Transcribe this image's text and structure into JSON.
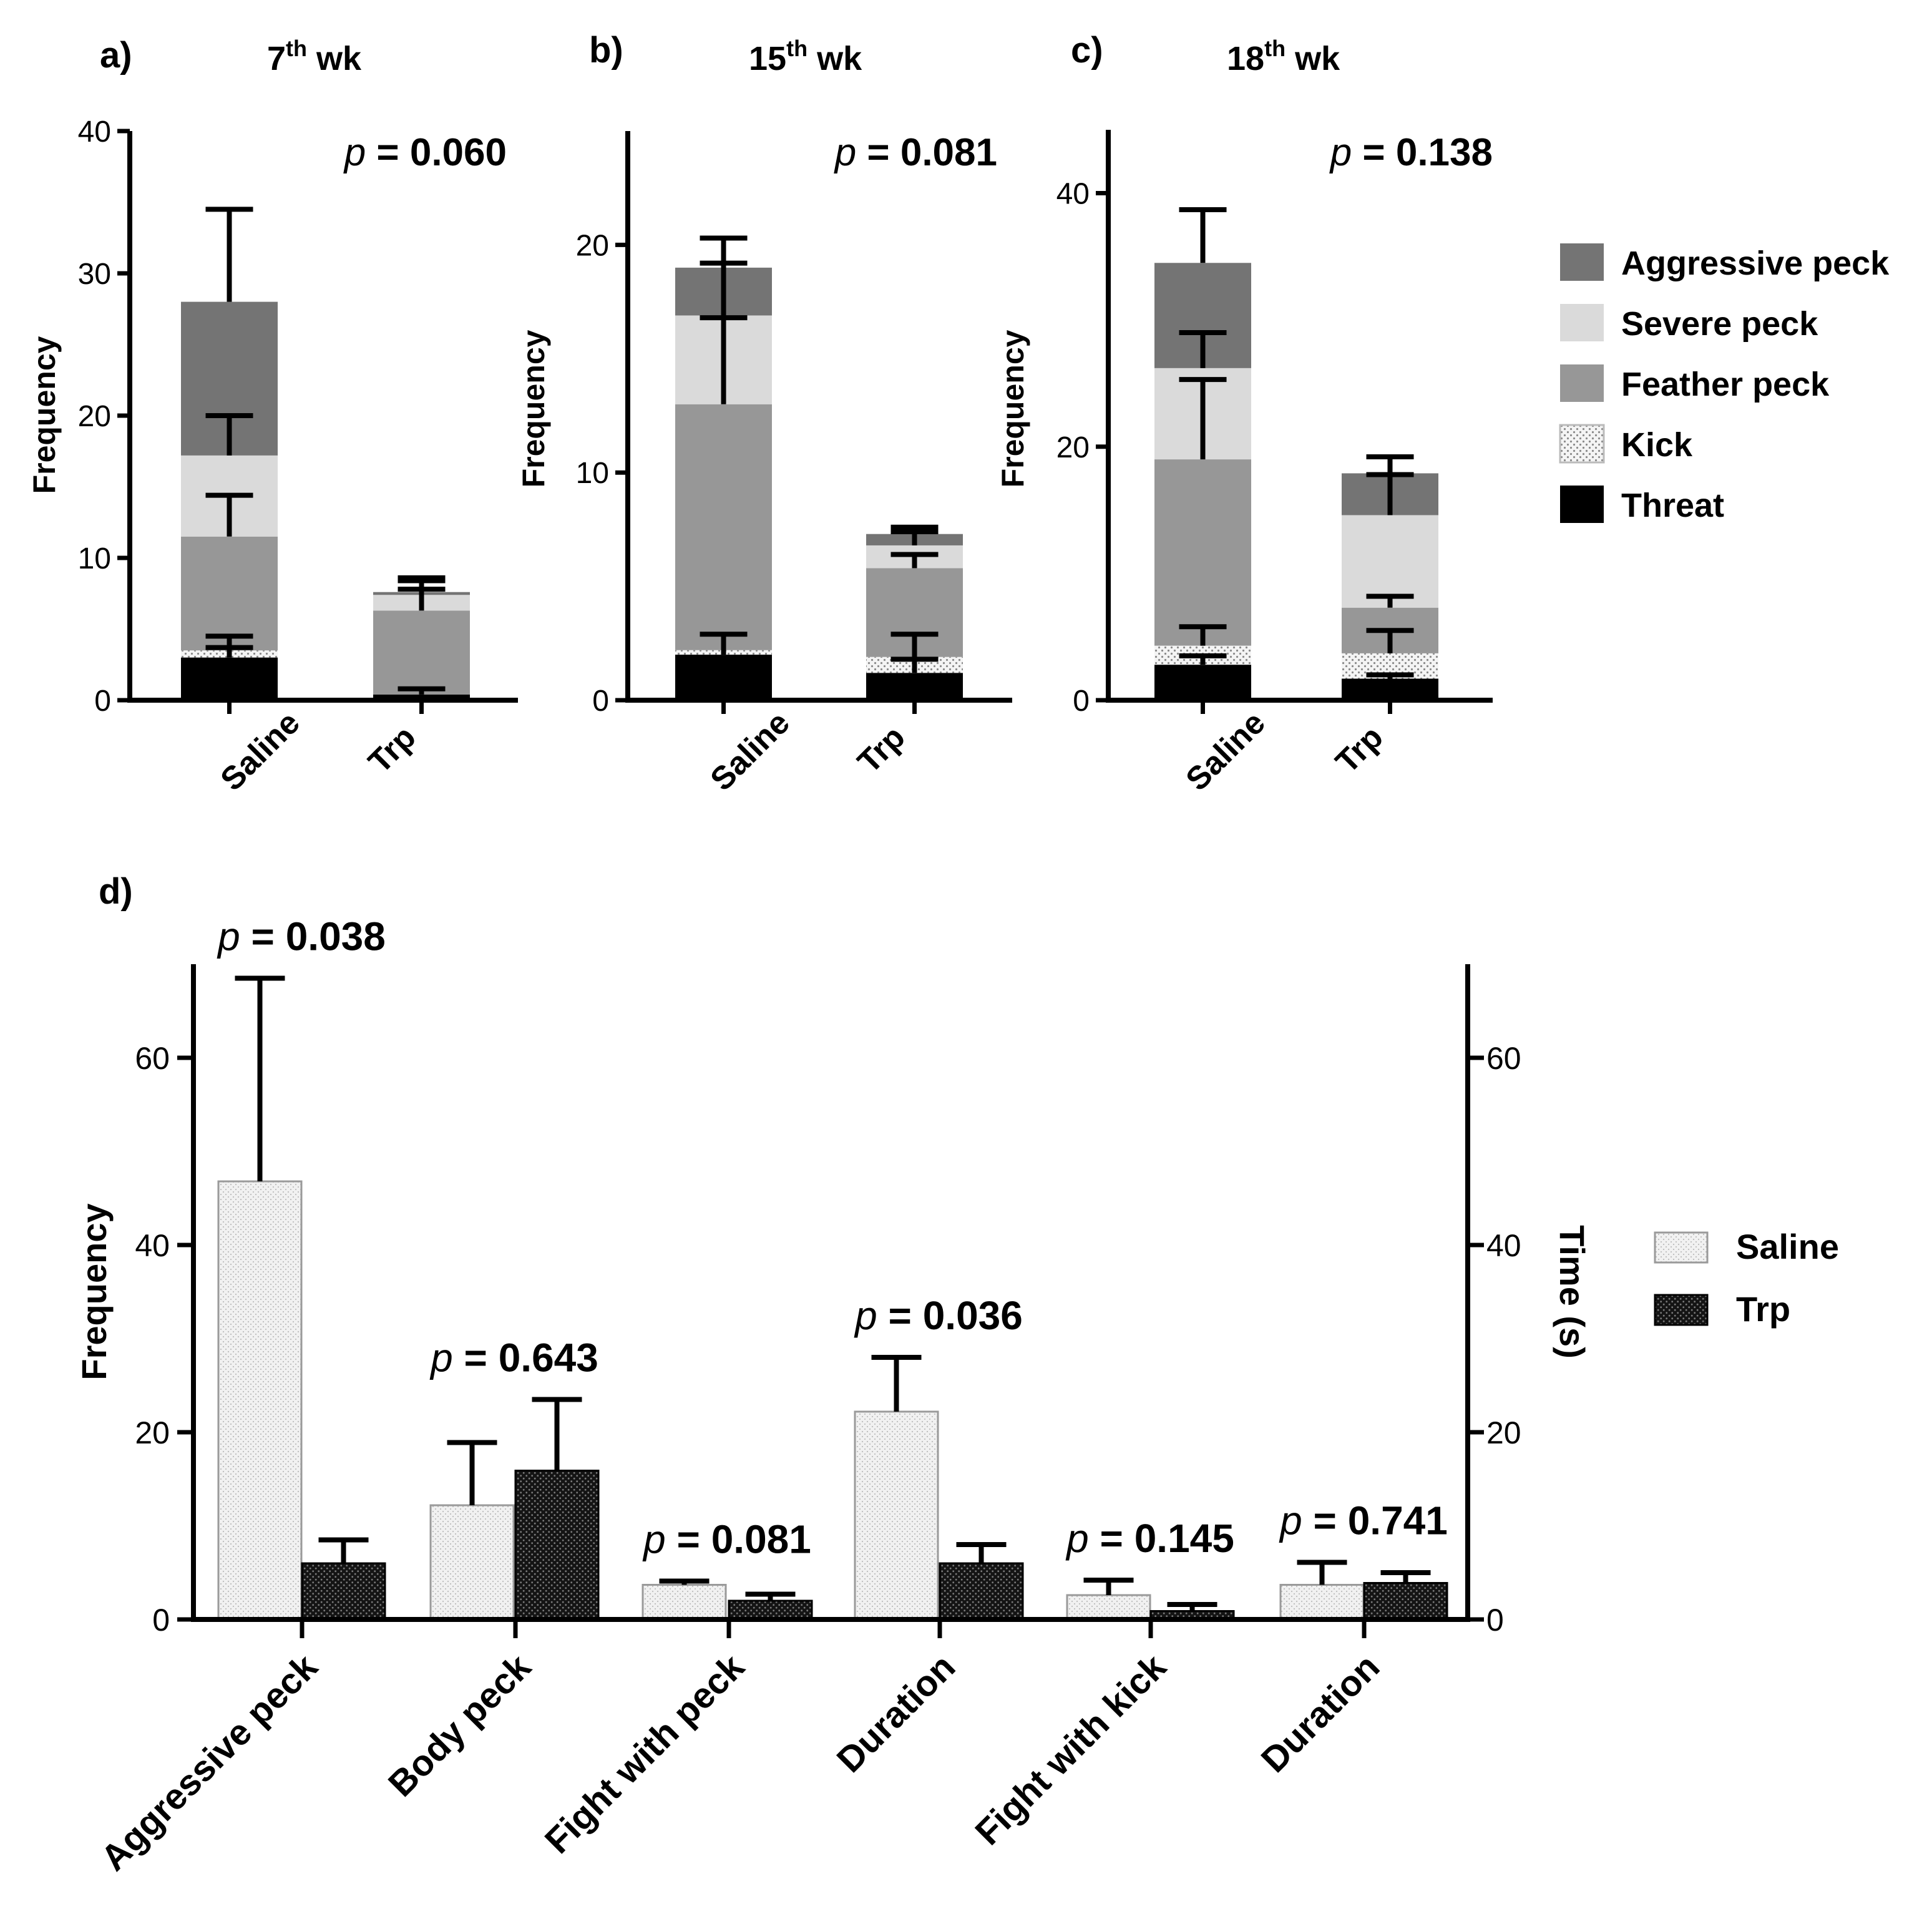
{
  "chart_data": [
    {
      "panel": "a)",
      "type": "bar",
      "stacked": true,
      "title": "7th wk",
      "title_base": "7",
      "title_sup": "th",
      "title_suffix": " wk",
      "p_label": "p",
      "p_value": "= 0.060",
      "ylabel": "Frequency",
      "ylim": [
        0,
        40
      ],
      "yticks": [
        0,
        10,
        20,
        30,
        40
      ],
      "categories": [
        "Saline",
        "Trp"
      ],
      "series": [
        {
          "name": "Threat",
          "values": [
            3.0,
            0.4
          ],
          "errors": [
            4.5,
            0.8
          ]
        },
        {
          "name": "Kick",
          "values": [
            0.5,
            0.0
          ],
          "errors": [
            3.7,
            0.0
          ]
        },
        {
          "name": "Feather peck",
          "values": [
            8.0,
            5.9
          ],
          "errors": [
            14.4,
            7.8
          ]
        },
        {
          "name": "Severe peck",
          "values": [
            5.7,
            1.1
          ],
          "errors": [
            20.0,
            8.4
          ]
        },
        {
          "name": "Aggressive peck",
          "values": [
            10.8,
            0.2
          ],
          "errors": [
            34.5,
            8.6
          ]
        }
      ]
    },
    {
      "panel": "b)",
      "type": "bar",
      "stacked": true,
      "title": "15th wk",
      "title_base": "15",
      "title_sup": "th",
      "title_suffix": " wk",
      "p_label": "p",
      "p_value": "= 0.081",
      "ylabel": "Frequency",
      "ylim": [
        0,
        25
      ],
      "yticks": [
        0,
        10,
        20
      ],
      "categories": [
        "Saline",
        "Trp"
      ],
      "series": [
        {
          "name": "Threat",
          "values": [
            2.0,
            1.2
          ],
          "errors": [
            2.9,
            1.8
          ]
        },
        {
          "name": "Kick",
          "values": [
            0.2,
            0.7
          ],
          "errors": [
            2.2,
            2.9
          ]
        },
        {
          "name": "Feather peck",
          "values": [
            10.8,
            3.9
          ],
          "errors": [
            16.8,
            6.4
          ]
        },
        {
          "name": "Severe peck",
          "values": [
            3.9,
            1.0
          ],
          "errors": [
            19.2,
            7.4
          ]
        },
        {
          "name": "Aggressive peck",
          "values": [
            2.1,
            0.5
          ],
          "errors": [
            20.3,
            7.6
          ]
        }
      ]
    },
    {
      "panel": "c)",
      "type": "bar",
      "stacked": true,
      "title": "18th wk",
      "title_base": "18",
      "title_sup": "th",
      "title_suffix": " wk",
      "p_label": "p",
      "p_value": "= 0.138",
      "ylabel": "Frequency",
      "ylim": [
        0,
        45
      ],
      "yticks": [
        0,
        20,
        40
      ],
      "categories": [
        "Saline",
        "Trp"
      ],
      "series": [
        {
          "name": "Threat",
          "values": [
            2.8,
            1.7
          ],
          "errors": [
            3.5,
            2.0
          ]
        },
        {
          "name": "Kick",
          "values": [
            1.5,
            2.0
          ],
          "errors": [
            5.8,
            5.5
          ]
        },
        {
          "name": "Feather peck",
          "values": [
            14.7,
            3.6
          ],
          "errors": [
            25.3,
            8.2
          ]
        },
        {
          "name": "Severe peck",
          "values": [
            7.2,
            7.3
          ],
          "errors": [
            29.0,
            17.8
          ]
        },
        {
          "name": "Aggressive peck",
          "values": [
            8.3,
            3.3
          ],
          "errors": [
            38.7,
            19.2
          ]
        }
      ]
    },
    {
      "panel": "d)",
      "type": "bar",
      "stacked": false,
      "title": "",
      "ylabel": "Frequency",
      "y2label": "Time (s)",
      "ylim": [
        0,
        70
      ],
      "yticks": [
        0,
        20,
        40,
        60
      ],
      "y2ticks": [
        0,
        20,
        40,
        60
      ],
      "categories": [
        "Aggressive peck",
        "Body peck",
        "Fight with peck",
        "Duration",
        "Fight with kick",
        "Duration"
      ],
      "p_label": "p",
      "p_values": [
        "= 0.038",
        "= 0.643",
        "= 0.081",
        "= 0.036",
        "= 0.145",
        "= 0.741"
      ],
      "series": [
        {
          "name": "Saline",
          "values": [
            46.8,
            12.2,
            3.7,
            22.2,
            2.6,
            3.7
          ],
          "errors": [
            68.5,
            18.9,
            4.1,
            28.0,
            4.2,
            6.1
          ]
        },
        {
          "name": "Trp",
          "values": [
            6.0,
            15.9,
            2.0,
            6.0,
            0.9,
            3.9
          ],
          "errors": [
            8.5,
            23.5,
            2.7,
            8.0,
            1.6,
            5.0
          ]
        }
      ]
    }
  ],
  "legend_top": [
    "Aggressive peck",
    "Severe peck",
    "Feather peck",
    "Kick",
    "Threat"
  ],
  "legend_bottom": [
    "Saline",
    "Trp"
  ],
  "colors": {
    "Aggressive peck": "#747474",
    "Severe peck": "#dadada",
    "Feather peck": "#979797",
    "Kick": "#eeeeee",
    "Threat": "#000000",
    "Saline": "#eeeeee",
    "Trp": "#1a1a1a"
  }
}
